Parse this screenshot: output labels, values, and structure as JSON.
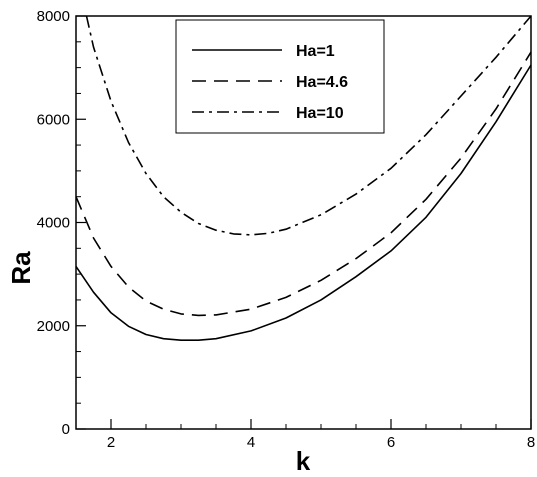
{
  "chart_data": {
    "type": "line",
    "title": "",
    "xlabel": "k",
    "ylabel": "Ra",
    "xlim": [
      1.5,
      8
    ],
    "ylim": [
      0,
      8000
    ],
    "x_ticks": [
      2,
      4,
      6,
      8
    ],
    "y_ticks": [
      0,
      2000,
      4000,
      6000,
      8000
    ],
    "grid": false,
    "legend_position": "top-center",
    "series": [
      {
        "name": "Ha=1",
        "line_style": "solid",
        "x": [
          1.5,
          1.75,
          2.0,
          2.25,
          2.5,
          2.75,
          3.0,
          3.25,
          3.5,
          4.0,
          4.5,
          5.0,
          5.5,
          6.0,
          6.5,
          7.0,
          7.5,
          8.0
        ],
        "y": [
          3150,
          2650,
          2250,
          1990,
          1830,
          1750,
          1720,
          1720,
          1750,
          1900,
          2150,
          2500,
          2950,
          3450,
          4100,
          4950,
          5950,
          7050
        ]
      },
      {
        "name": "Ha=4.6",
        "line_style": "dashed",
        "x": [
          1.5,
          1.75,
          2.0,
          2.25,
          2.5,
          2.75,
          3.0,
          3.25,
          3.5,
          4.0,
          4.5,
          5.0,
          5.5,
          6.0,
          6.5,
          7.0,
          7.5,
          8.0
        ],
        "y": [
          4500,
          3700,
          3150,
          2750,
          2480,
          2320,
          2230,
          2200,
          2210,
          2320,
          2550,
          2880,
          3300,
          3800,
          4450,
          5250,
          6200,
          7300
        ]
      },
      {
        "name": "Ha=10",
        "line_style": "dashdot",
        "x": [
          1.65,
          1.75,
          2.0,
          2.25,
          2.5,
          2.75,
          3.0,
          3.25,
          3.5,
          3.75,
          4.0,
          4.25,
          4.5,
          5.0,
          5.5,
          6.0,
          6.5,
          7.0,
          7.5,
          8.0
        ],
        "y": [
          8000,
          7400,
          6350,
          5550,
          4950,
          4500,
          4200,
          3980,
          3850,
          3780,
          3760,
          3790,
          3870,
          4150,
          4550,
          5050,
          5700,
          6450,
          7200,
          8000
        ]
      }
    ]
  }
}
